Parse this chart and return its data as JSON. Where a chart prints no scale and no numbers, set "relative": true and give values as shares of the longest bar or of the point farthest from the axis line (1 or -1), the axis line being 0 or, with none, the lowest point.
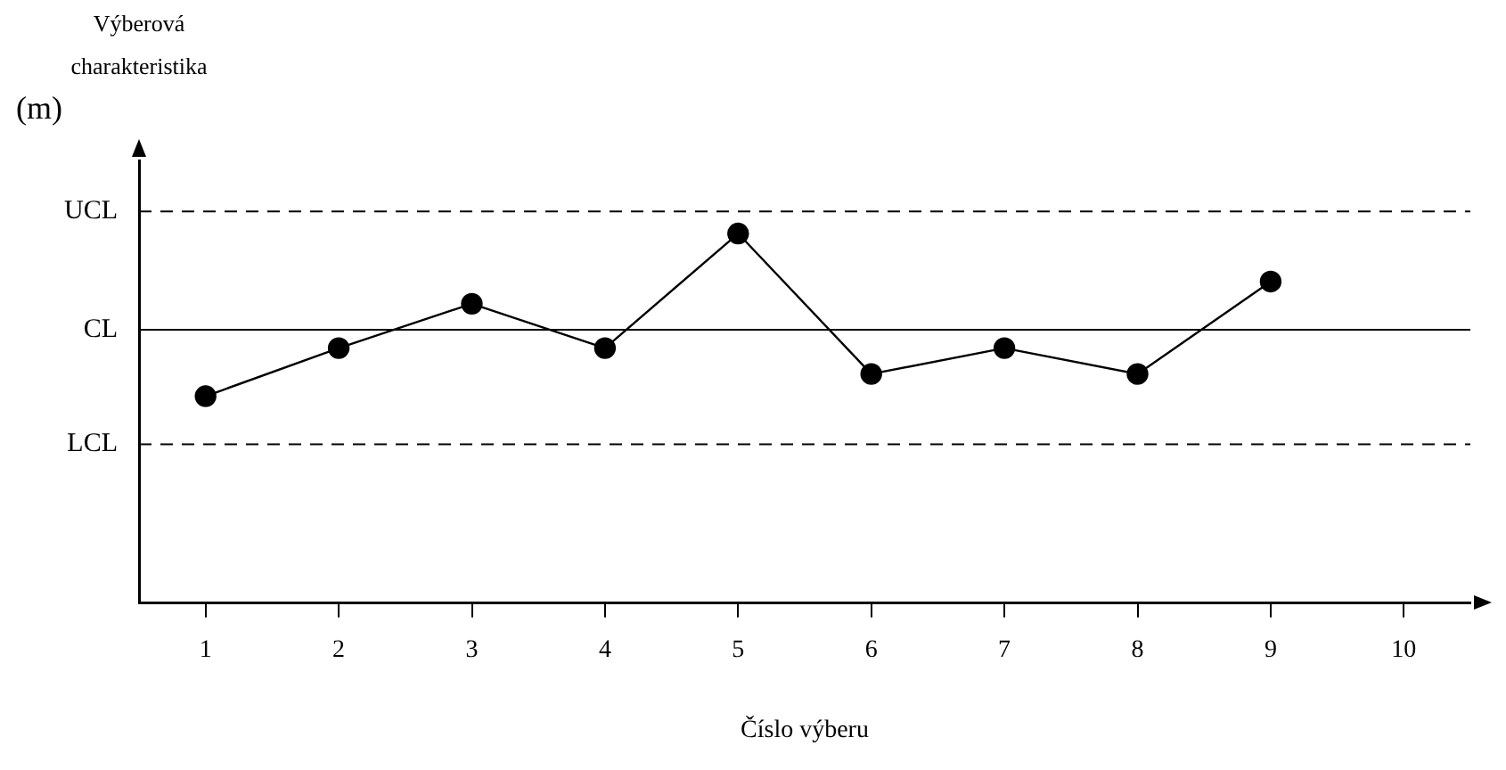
{
  "chart_data": {
    "type": "line",
    "relative": true,
    "ylabel": "Výberová charakteristika (m)",
    "xlabel": "Číslo výberu",
    "categories": [
      "1",
      "2",
      "3",
      "4",
      "5",
      "6",
      "7",
      "8",
      "9",
      "10"
    ],
    "series": [
      {
        "color": "#000000",
        "values": [
          0.56,
          0.69,
          0.81,
          0.69,
          1,
          0.62,
          0.69,
          0.62,
          0.87,
          null
        ]
      }
    ],
    "ref_lines": [
      {
        "axis": "y",
        "value": 1.06,
        "label": "UCL",
        "color": "#000000",
        "line_style": "dashed"
      },
      {
        "axis": "y",
        "value": 0.74,
        "label": "CL",
        "color": "#000000",
        "line_style": "solid"
      },
      {
        "axis": "y",
        "value": 0.43,
        "label": "LCL",
        "color": "#000000",
        "line_style": "dashed"
      }
    ],
    "marker": "circle",
    "line_style": "solid",
    "grid": false,
    "legend": false
  }
}
